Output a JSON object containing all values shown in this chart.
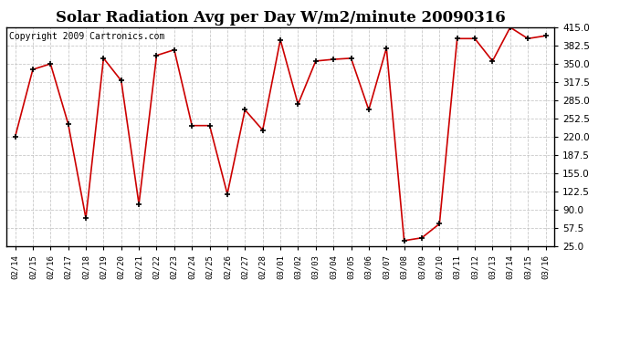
{
  "title": "Solar Radiation Avg per Day W/m2/minute 20090316",
  "copyright": "Copyright 2009 Cartronics.com",
  "labels": [
    "02/14",
    "02/15",
    "02/16",
    "02/17",
    "02/18",
    "02/19",
    "02/20",
    "02/21",
    "02/22",
    "02/23",
    "02/24",
    "02/25",
    "02/26",
    "02/27",
    "02/28",
    "03/01",
    "03/02",
    "03/03",
    "03/04",
    "03/05",
    "03/06",
    "03/07",
    "03/08",
    "03/09",
    "03/10",
    "03/11",
    "03/12",
    "03/13",
    "03/14",
    "03/15",
    "03/16"
  ],
  "values": [
    220,
    340,
    350,
    243,
    75,
    360,
    320,
    100,
    365,
    375,
    240,
    240,
    118,
    268,
    232,
    393,
    278,
    355,
    358,
    360,
    268,
    378,
    35,
    40,
    65,
    395,
    395,
    355,
    415,
    395,
    400
  ],
  "line_color": "#cc0000",
  "marker_color": "#000000",
  "bg_color": "#ffffff",
  "plot_bg_color": "#ffffff",
  "grid_color": "#bbbbbb",
  "ylim": [
    25.0,
    415.0
  ],
  "yticks": [
    25.0,
    57.5,
    90.0,
    122.5,
    155.0,
    187.5,
    220.0,
    252.5,
    285.0,
    317.5,
    350.0,
    382.5,
    415.0
  ],
  "title_fontsize": 12,
  "copyright_fontsize": 7,
  "tick_fontsize": 7.5,
  "xtick_fontsize": 6.5
}
